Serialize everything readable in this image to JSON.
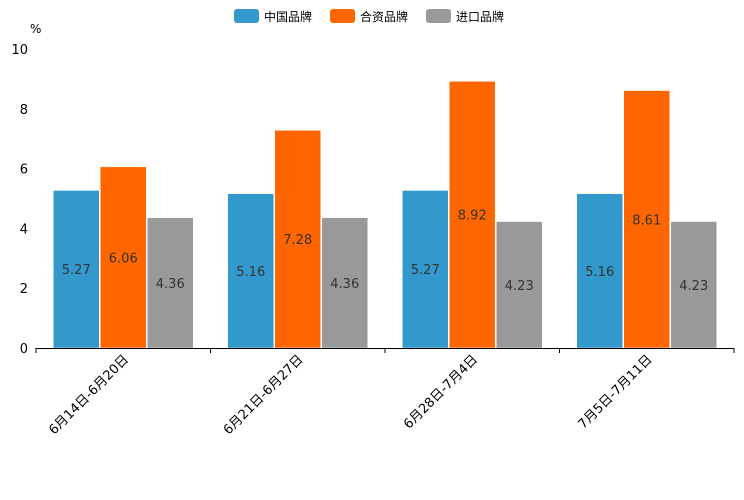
{
  "chart_data": {
    "type": "bar",
    "unit": "%",
    "categories": [
      "6月14日-6月20日",
      "6月21日-6月27日",
      "6月28日-7月4日",
      "7月5日-7月11日"
    ],
    "series": [
      {
        "name": "中国品牌",
        "color": "#3399cc",
        "values": [
          5.27,
          5.16,
          5.27,
          5.16
        ]
      },
      {
        "name": "合资品牌",
        "color": "#ff6600",
        "values": [
          6.06,
          7.28,
          8.92,
          8.61
        ]
      },
      {
        "name": "进口品牌",
        "color": "#999999",
        "values": [
          4.36,
          4.36,
          4.23,
          4.23
        ]
      }
    ],
    "y_ticks": [
      0,
      2,
      4,
      6,
      8,
      10
    ],
    "ylim": [
      0,
      10
    ],
    "legend_position": "top-center",
    "grid": false
  }
}
